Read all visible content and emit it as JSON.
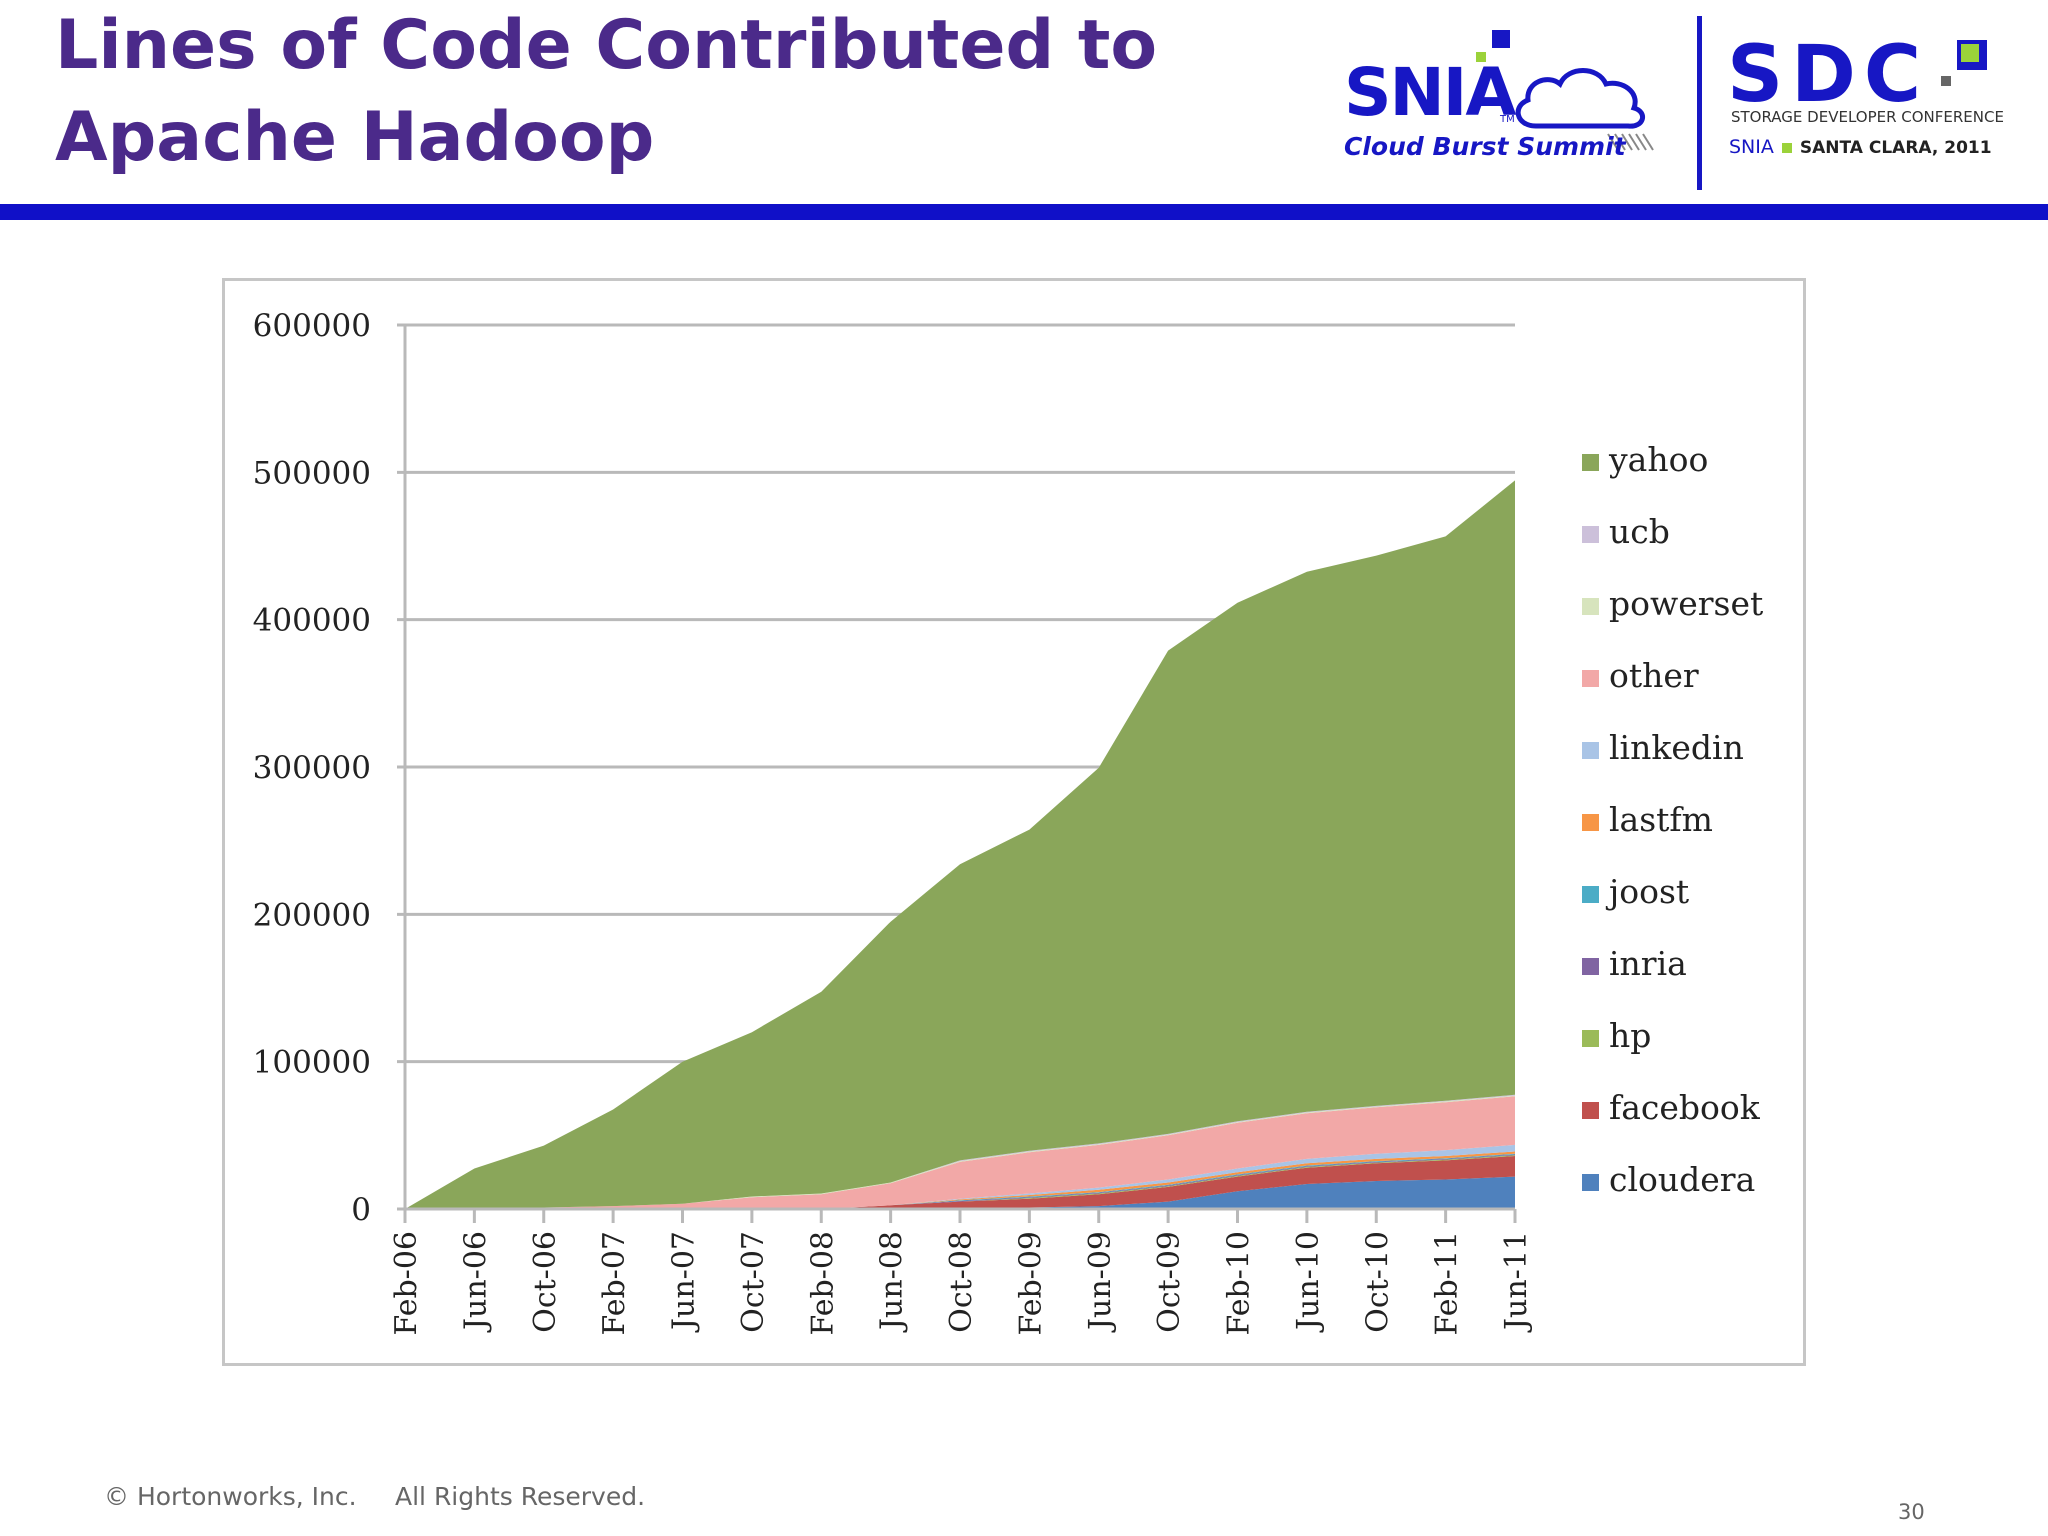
{
  "slide": {
    "title_line1": "Lines of Code Contributed to",
    "title_line2": "Apache Hadoop",
    "footer_copyright": "© Hortonworks, Inc.",
    "footer_rights": "All Rights Reserved.",
    "page_number": "30"
  },
  "logos": {
    "snia_word": "SNIA",
    "snia_tm": "TM",
    "snia_sub": "Cloud Burst Summit",
    "sdc_word": "SDC",
    "sdc_sub1": "STORAGE DEVELOPER CONFERENCE",
    "sdc_sub2_org": "SNIA",
    "sdc_sub2_place": "SANTA CLARA, 2011",
    "brand_blue": "#1717c4",
    "title_purple": "#4b2a8a"
  },
  "chart_data": {
    "type": "area",
    "stacked": true,
    "title": "",
    "xlabel": "",
    "ylabel": "",
    "ylim": [
      0,
      600000
    ],
    "yticks": [
      "0",
      "100000",
      "200000",
      "300000",
      "400000",
      "500000",
      "600000"
    ],
    "x": [
      "Feb-06",
      "Jun-06",
      "Oct-06",
      "Feb-07",
      "Jun-07",
      "Oct-07",
      "Feb-08",
      "Jun-08",
      "Oct-08",
      "Feb-09",
      "Jun-09",
      "Oct-09",
      "Feb-10",
      "Jun-10",
      "Oct-10",
      "Feb-11",
      "Jun-11"
    ],
    "grid": "horizontal",
    "legend_position": "right",
    "series": [
      {
        "name": "cloudera",
        "color": "#4f81bd",
        "values": [
          0,
          0,
          0,
          0,
          0,
          0,
          0,
          500,
          1000,
          1000,
          2000,
          5000,
          12000,
          17000,
          19000,
          20000,
          22000
        ]
      },
      {
        "name": "facebook",
        "color": "#c0504d",
        "values": [
          0,
          0,
          0,
          0,
          0,
          0,
          0,
          2000,
          4000,
          6000,
          8000,
          10000,
          10000,
          11000,
          12000,
          13000,
          14000
        ]
      },
      {
        "name": "hp",
        "color": "#9bbb59",
        "values": [
          0,
          0,
          0,
          0,
          0,
          0,
          0,
          0,
          0,
          500,
          500,
          500,
          500,
          500,
          500,
          500,
          500
        ]
      },
      {
        "name": "inria",
        "color": "#8064a2",
        "values": [
          0,
          0,
          0,
          0,
          0,
          0,
          0,
          0,
          500,
          500,
          500,
          500,
          500,
          500,
          500,
          500,
          500
        ]
      },
      {
        "name": "joost",
        "color": "#4bacc6",
        "values": [
          0,
          0,
          0,
          0,
          0,
          0,
          0,
          0,
          500,
          500,
          500,
          500,
          500,
          500,
          500,
          500,
          500
        ]
      },
      {
        "name": "lastfm",
        "color": "#f79646",
        "values": [
          0,
          0,
          0,
          0,
          0,
          0,
          0,
          0,
          500,
          1000,
          1500,
          1500,
          1500,
          1500,
          1500,
          1500,
          1500
        ]
      },
      {
        "name": "linkedin",
        "color": "#a9c4e6",
        "values": [
          0,
          0,
          0,
          0,
          0,
          0,
          0,
          0,
          500,
          1000,
          1500,
          2000,
          2500,
          3000,
          3500,
          4000,
          4500
        ]
      },
      {
        "name": "other",
        "color": "#f2a8a7",
        "values": [
          0,
          500,
          1000,
          2000,
          3500,
          8000,
          10000,
          15000,
          25000,
          28000,
          29000,
          30000,
          31000,
          31000,
          31500,
          32500,
          33000
        ]
      },
      {
        "name": "powerset",
        "color": "#d7e4bd",
        "values": [
          0,
          0,
          0,
          0,
          0,
          500,
          500,
          500,
          500,
          500,
          500,
          500,
          500,
          500,
          500,
          500,
          500
        ]
      },
      {
        "name": "ucb",
        "color": "#ccc0da",
        "values": [
          0,
          0,
          0,
          0,
          0,
          0,
          0,
          0,
          500,
          500,
          500,
          500,
          500,
          500,
          500,
          500,
          500
        ]
      },
      {
        "name": "yahoo",
        "color": "#8aa65a",
        "values": [
          0,
          27000,
          42000,
          65500,
          96500,
          111500,
          137000,
          177000,
          201000,
          218000,
          255000,
          328000,
          352000,
          366500,
          373500,
          383000,
          417000
        ]
      }
    ]
  }
}
